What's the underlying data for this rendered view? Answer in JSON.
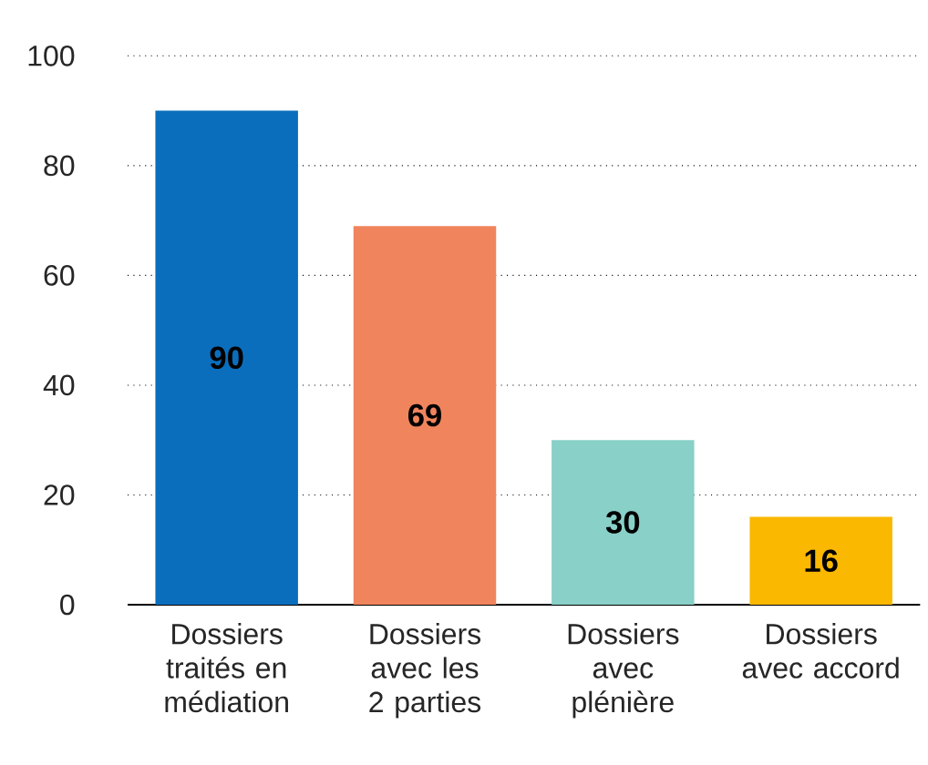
{
  "chart_data": {
    "type": "bar",
    "categories": [
      "Dossiers traités en médiation",
      "Dossiers avec les 2 parties",
      "Dossiers avec plénière",
      "Dossiers avec accord"
    ],
    "values": [
      90,
      69,
      30,
      16
    ],
    "colors": [
      "#0a6ebd",
      "#f0845c",
      "#88d0c8",
      "#fbb800"
    ],
    "ylim": [
      0,
      100
    ],
    "yticks": [
      0,
      20,
      40,
      60,
      80,
      100
    ],
    "grid": "y",
    "data_labels": true
  }
}
